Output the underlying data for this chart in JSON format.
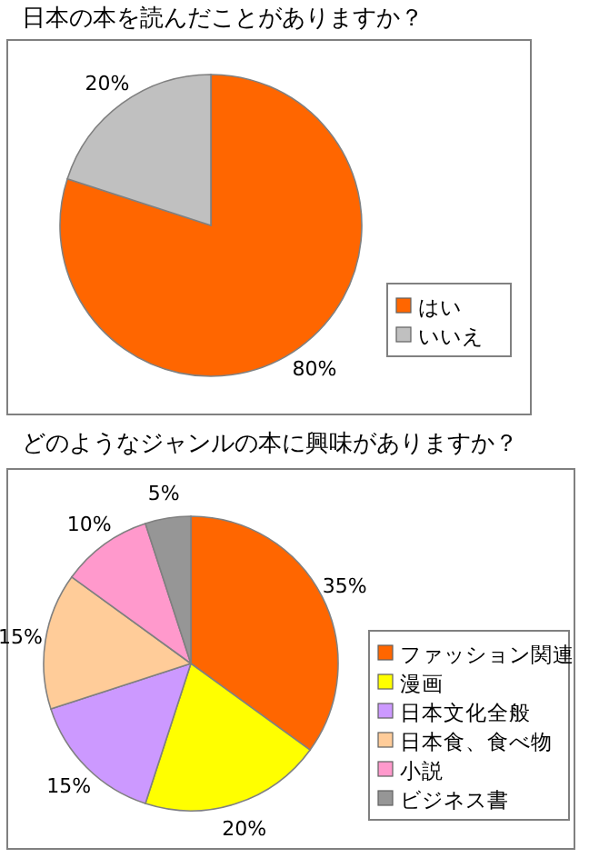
{
  "chart_data": [
    {
      "type": "pie",
      "title": "日本の本を読んだことがありますか？",
      "categories": [
        "はい",
        "いいえ"
      ],
      "values": [
        80,
        20
      ],
      "colors": [
        "#ff6600",
        "#c0c0c0"
      ],
      "value_labels": [
        "80%",
        "20%"
      ],
      "legend": "right"
    },
    {
      "type": "pie",
      "title": "どのようなジャンルの本に興味がありますか？",
      "categories": [
        "ファッション関連",
        "漫画",
        "日本文化全般",
        "日本食、食べ物",
        "小説",
        "ビジネス書"
      ],
      "values": [
        35,
        20,
        15,
        15,
        10,
        5
      ],
      "colors": [
        "#ff6600",
        "#ffff00",
        "#cc99ff",
        "#ffcc99",
        "#ff99cc",
        "#969696"
      ],
      "value_labels": [
        "35%",
        "20%",
        "15%",
        "15%",
        "10%",
        "5%"
      ],
      "legend": "right"
    }
  ]
}
